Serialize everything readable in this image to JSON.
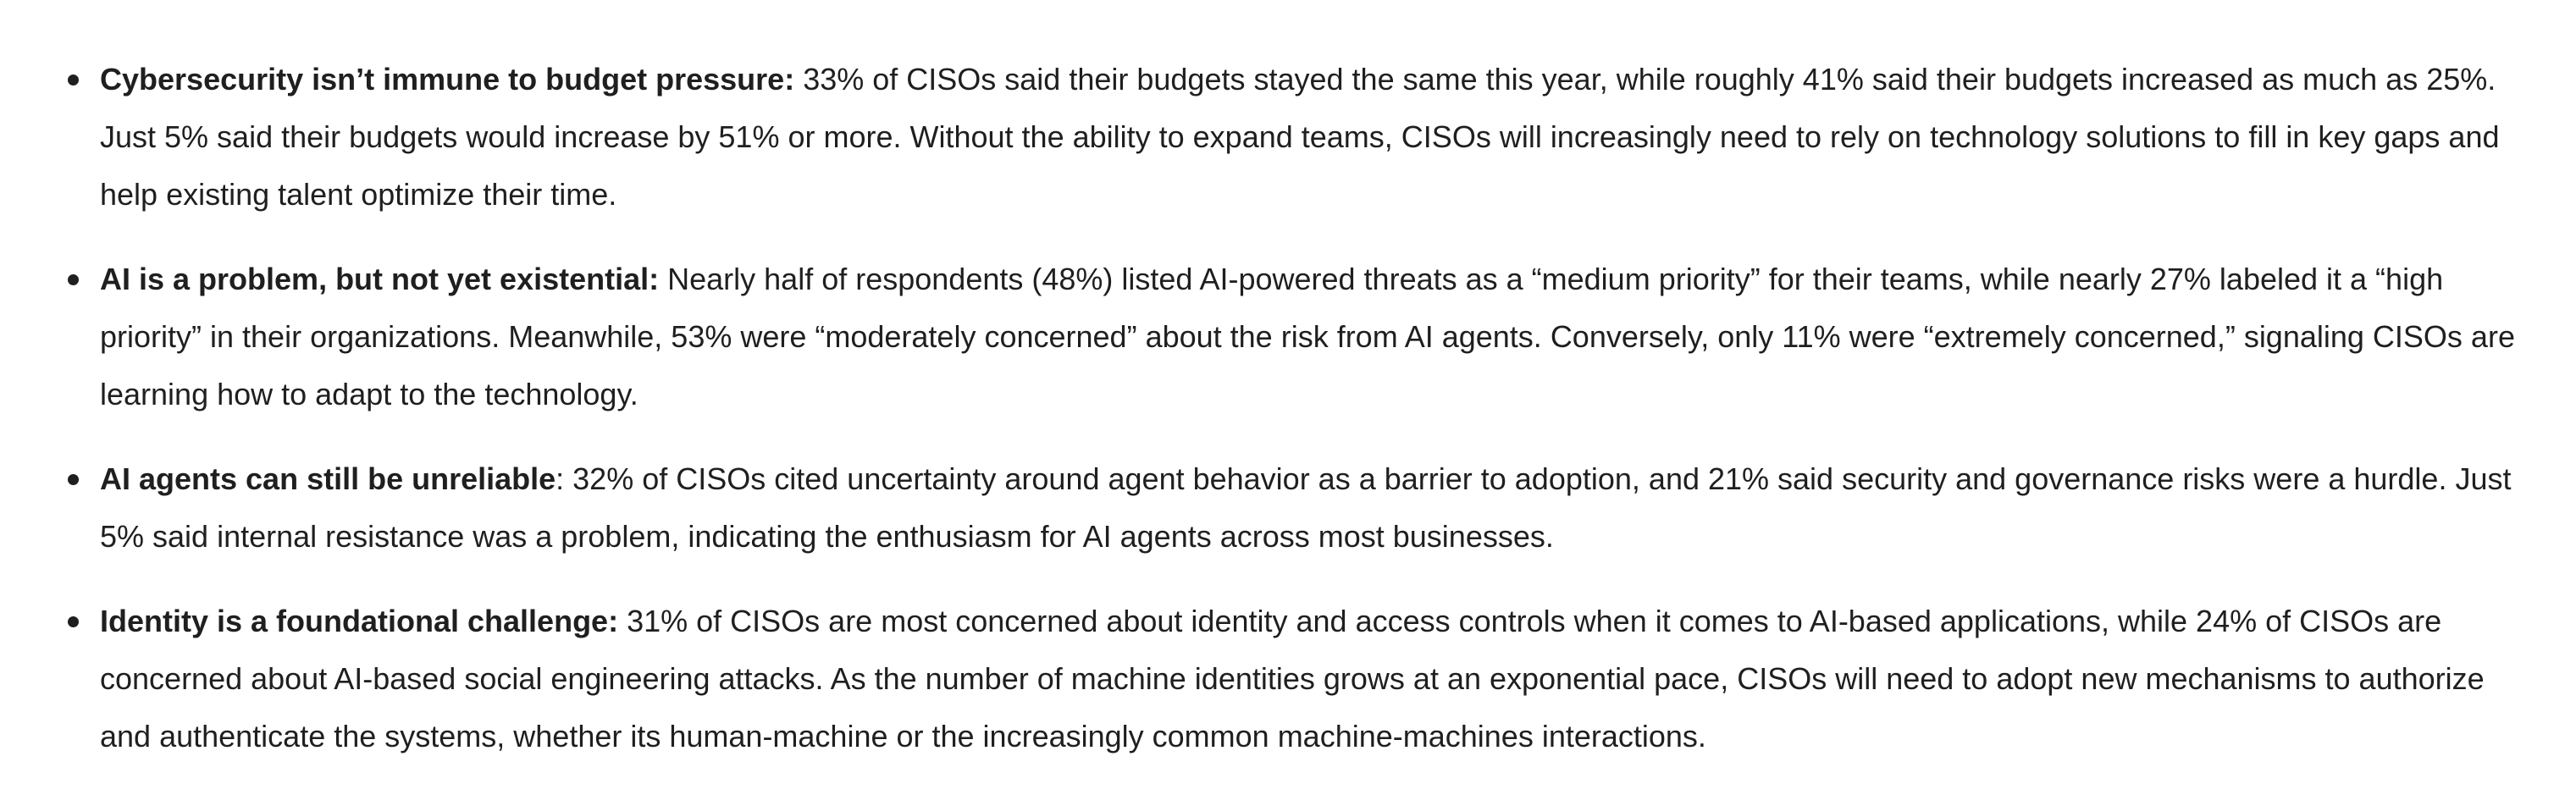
{
  "bullets": [
    {
      "lead": "Cybersecurity isn’t immune to budget pressure:",
      "text": " 33% of CISOs said their budgets stayed the same this year, while roughly 41% said their budgets increased as much as 25%. Just 5% said their budgets would increase by 51% or more. Without the ability to expand teams, CISOs will increasingly need to rely on technology solutions to fill in key gaps and help existing talent optimize their time."
    },
    {
      "lead": "AI is a problem, but not yet existential:",
      "text": " Nearly half of respondents (48%) listed AI-powered threats as a “medium priority” for their teams, while nearly 27% labeled it a “high priority” in their organizations. Meanwhile, 53% were “moderately concerned” about the risk from AI agents. Conversely, only 11% were “extremely concerned,” signaling CISOs are learning how to adapt to the technology."
    },
    {
      "lead": "AI agents can still be unreliable",
      "text": ": 32% of CISOs cited uncertainty around agent behavior as a barrier to adoption, and 21% said security and governance risks were a hurdle. Just 5% said internal resistance was a problem, indicating the enthusiasm for AI agents across most businesses."
    },
    {
      "lead": "Identity is a foundational challenge:",
      "text": " 31% of CISOs are most concerned about identity and access controls when it comes to AI-based applications, while 24% of CISOs are concerned about AI-based social engineering attacks. As the number of machine identities grows at an exponential pace, CISOs will need to adopt new mechanisms to authorize and authenticate the systems, whether its human-machine or the increasingly common machine-machines interactions."
    }
  ]
}
